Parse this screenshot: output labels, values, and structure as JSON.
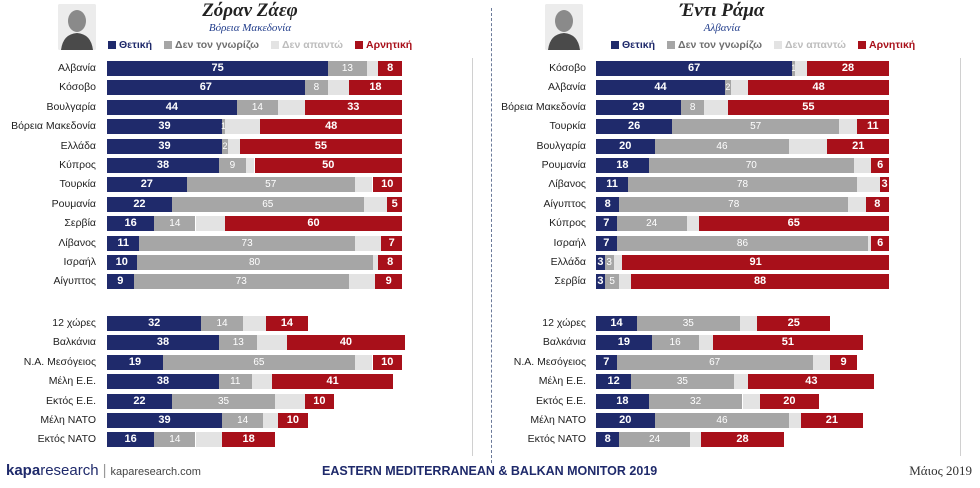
{
  "footer": {
    "brand": "kapa",
    "brand_suffix": "research",
    "url": "kaparesearch.com",
    "center_title": "EASTERN MEDITERRANEAN & BALKAN MONITOR 2019",
    "date": "Μάιος 2019"
  },
  "colors": {
    "positive": "#1f2a6b",
    "dont_know": "#a6a6a6",
    "no_answer": "#e3e3e3",
    "negative": "#a8101a"
  },
  "chart_data": [
    {
      "type": "bar",
      "orientation": "horizontal",
      "stacked": true,
      "title": "Ζόραν Ζάεφ",
      "subtitle": "Βόρεια Μακεδονία",
      "portrait_icon": "portrait-photo",
      "series": [
        {
          "name": "Θετική",
          "key": "positive"
        },
        {
          "name": "Δεν τον γνωρίζω",
          "key": "dont_know"
        },
        {
          "name": "Δεν απαντώ",
          "key": "no_answer"
        },
        {
          "name": "Αρνητική",
          "key": "negative"
        }
      ],
      "groups": [
        {
          "rows": [
            {
              "category": "Αλβανία",
              "values": [
                75,
                13,
                4,
                8
              ]
            },
            {
              "category": "Κόσοβο",
              "values": [
                67,
                8,
                7,
                18
              ]
            },
            {
              "category": "Βουλγαρία",
              "values": [
                44,
                14,
                9,
                33
              ]
            },
            {
              "category": "Βόρεια Μακεδονία",
              "values": [
                39,
                1,
                12,
                48
              ]
            },
            {
              "category": "Ελλάδα",
              "values": [
                39,
                2,
                4,
                55
              ]
            },
            {
              "category": "Κύπρος",
              "values": [
                38,
                9,
                3,
                50
              ]
            },
            {
              "category": "Τουρκία",
              "values": [
                27,
                57,
                6,
                10
              ]
            },
            {
              "category": "Ρουμανία",
              "values": [
                22,
                65,
                8,
                5
              ]
            },
            {
              "category": "Σερβία",
              "values": [
                16,
                14,
                10,
                60
              ]
            },
            {
              "category": "Λίβανος",
              "values": [
                11,
                73,
                9,
                7
              ]
            },
            {
              "category": "Ισραήλ",
              "values": [
                10,
                80,
                2,
                8
              ]
            },
            {
              "category": "Αίγυπτος",
              "values": [
                9,
                73,
                9,
                9
              ]
            }
          ]
        },
        {
          "rows": [
            {
              "category": "12 χώρες",
              "values": [
                32,
                14,
                8,
                14
              ]
            },
            {
              "category": "Βαλκάνια",
              "values": [
                38,
                13,
                10,
                40
              ]
            },
            {
              "category": "Ν.Α. Μεσόγειος",
              "values": [
                19,
                65,
                6,
                10
              ]
            },
            {
              "category": "Μέλη Ε.Ε.",
              "values": [
                38,
                11,
                7,
                41
              ]
            },
            {
              "category": "Εκτός Ε.Ε.",
              "values": [
                22,
                35,
                10,
                10
              ]
            },
            {
              "category": "Μέλη ΝΑΤΟ",
              "values": [
                39,
                14,
                5,
                10
              ]
            },
            {
              "category": "Εκτός ΝΑΤΟ",
              "values": [
                16,
                14,
                9,
                18
              ]
            }
          ]
        }
      ]
    },
    {
      "type": "bar",
      "orientation": "horizontal",
      "stacked": true,
      "title": "Έντι Ράμα",
      "subtitle": "Αλβανία",
      "portrait_icon": "portrait-photo",
      "series": [
        {
          "name": "Θετική",
          "key": "positive"
        },
        {
          "name": "Δεν τον γνωρίζω",
          "key": "dont_know"
        },
        {
          "name": "Δεν απαντώ",
          "key": "no_answer"
        },
        {
          "name": "Αρνητική",
          "key": "negative"
        }
      ],
      "groups": [
        {
          "rows": [
            {
              "category": "Κόσοβο",
              "values": [
                67,
                1,
                4,
                28
              ]
            },
            {
              "category": "Αλβανία",
              "values": [
                44,
                2,
                6,
                48
              ]
            },
            {
              "category": "Βόρεια Μακεδονία",
              "values": [
                29,
                8,
                8,
                55
              ]
            },
            {
              "category": "Τουρκία",
              "values": [
                26,
                57,
                6,
                11
              ]
            },
            {
              "category": "Βουλγαρία",
              "values": [
                20,
                46,
                13,
                21
              ]
            },
            {
              "category": "Ρουμανία",
              "values": [
                18,
                70,
                6,
                6
              ]
            },
            {
              "category": "Λίβανος",
              "values": [
                11,
                78,
                8,
                3
              ]
            },
            {
              "category": "Αίγυπτος",
              "values": [
                8,
                78,
                6,
                8
              ]
            },
            {
              "category": "Κύπρος",
              "values": [
                7,
                24,
                4,
                65
              ]
            },
            {
              "category": "Ισραήλ",
              "values": [
                7,
                86,
                1,
                6
              ]
            },
            {
              "category": "Ελλάδα",
              "values": [
                3,
                3,
                3,
                91
              ]
            },
            {
              "category": "Σερβία",
              "values": [
                3,
                5,
                4,
                88
              ]
            }
          ]
        },
        {
          "rows": [
            {
              "category": "12 χώρες",
              "values": [
                14,
                35,
                6,
                25
              ]
            },
            {
              "category": "Βαλκάνια",
              "values": [
                19,
                16,
                5,
                51
              ]
            },
            {
              "category": "Ν.Α. Μεσόγειος",
              "values": [
                7,
                67,
                6,
                9
              ]
            },
            {
              "category": "Μέλη Ε.Ε.",
              "values": [
                12,
                35,
                5,
                43
              ]
            },
            {
              "category": "Εκτός Ε.Ε.",
              "values": [
                18,
                32,
                6,
                20
              ]
            },
            {
              "category": "Μέλη ΝΑΤΟ",
              "values": [
                20,
                46,
                4,
                21
              ]
            },
            {
              "category": "Εκτός ΝΑΤΟ",
              "values": [
                8,
                24,
                4,
                28
              ]
            }
          ]
        }
      ]
    }
  ]
}
